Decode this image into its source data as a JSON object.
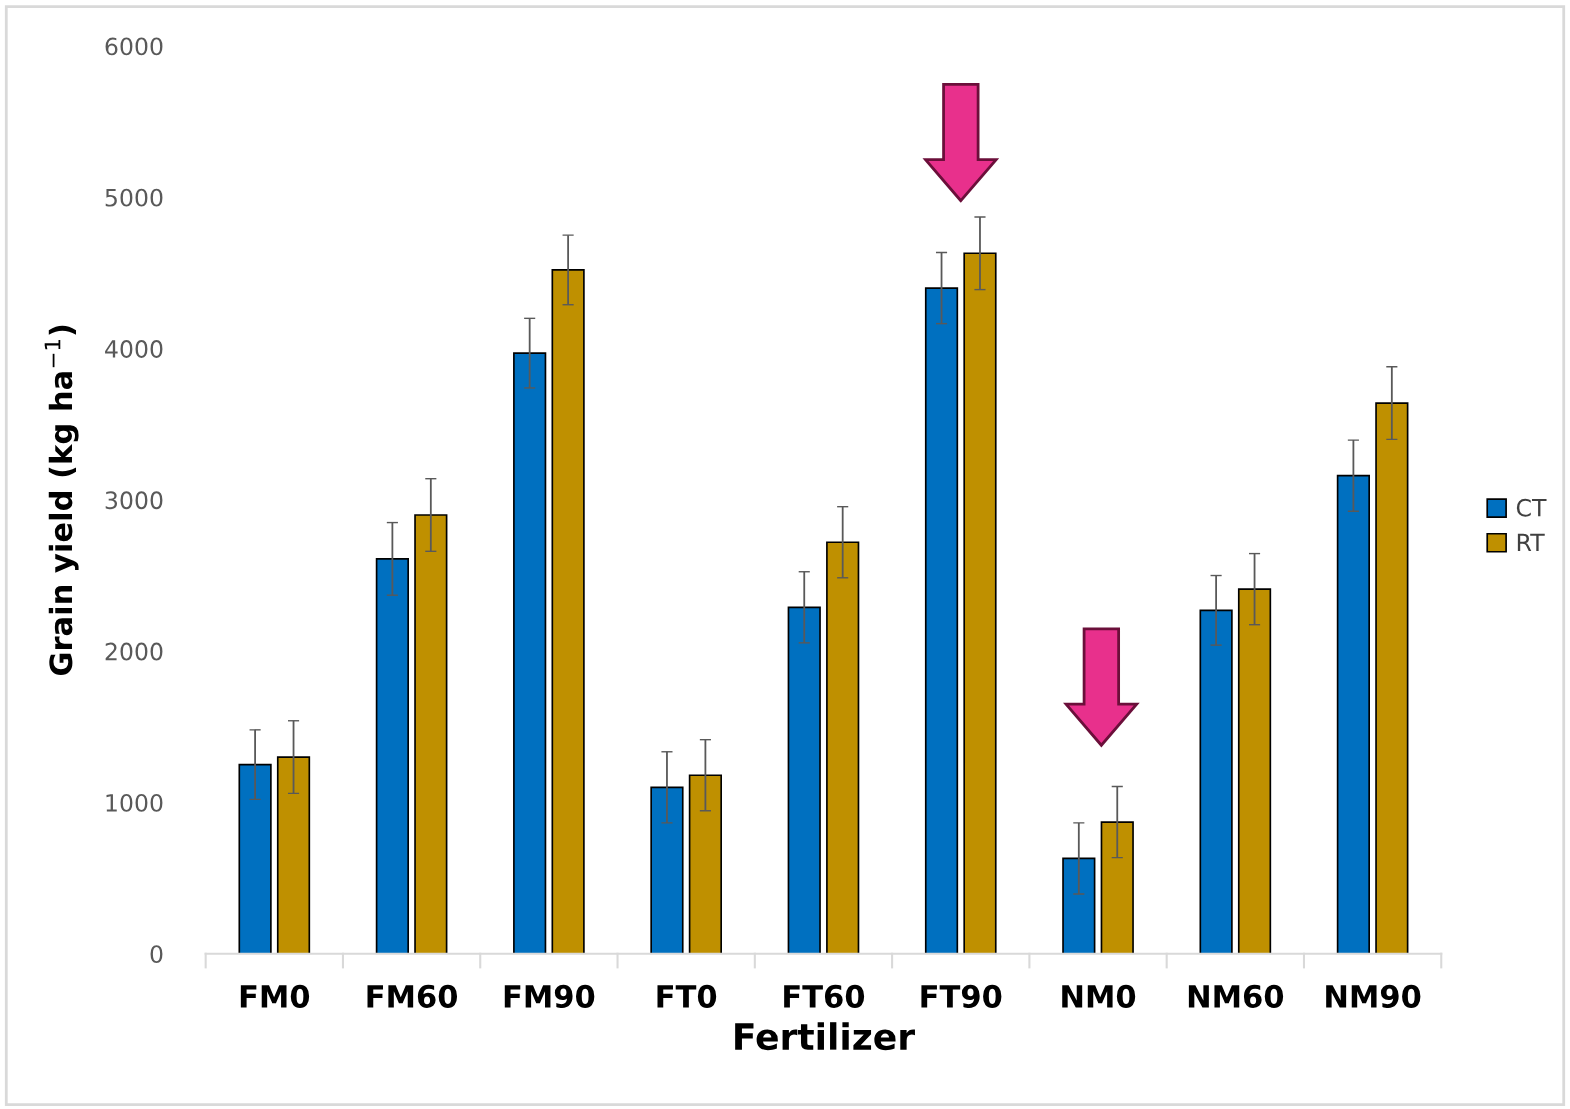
{
  "chart_data": {
    "type": "bar",
    "xlabel": "Fertilizer",
    "ylabel": "Grain yield (kg ha$^{−1}$)",
    "categories": [
      "FM0",
      "FM60",
      "FM90",
      "FT0",
      "FT60",
      "FT90",
      "NM0",
      "NM60",
      "NM90"
    ],
    "series": [
      {
        "name": "CT",
        "color": "#0070c0",
        "values": [
          1250,
          2610,
          3970,
          1100,
          2290,
          4400,
          630,
          2270,
          3160
        ],
        "errors": [
          230,
          240,
          230,
          235,
          235,
          235,
          235,
          230,
          235
        ]
      },
      {
        "name": "RT",
        "color": "#bf9000",
        "values": [
          1300,
          2900,
          4520,
          1180,
          2720,
          4630,
          870,
          2410,
          3640
        ],
        "errors": [
          240,
          240,
          230,
          235,
          235,
          240,
          235,
          235,
          240
        ]
      }
    ],
    "ylim": [
      0,
      6000
    ],
    "yticks": [
      0,
      1000,
      2000,
      3000,
      4000,
      5000,
      6000
    ],
    "grid": false,
    "legend": "right"
  }
}
